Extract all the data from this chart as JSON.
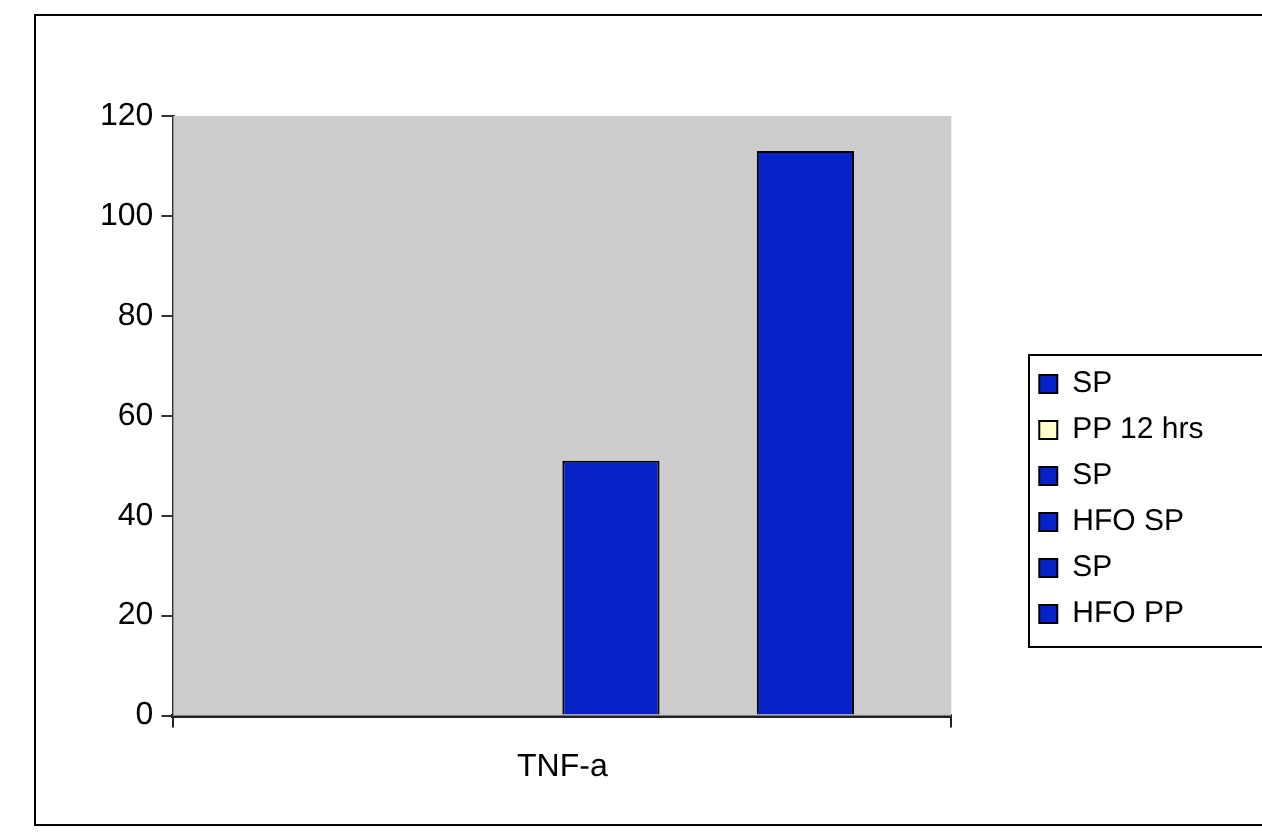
{
  "chart_data": {
    "type": "bar",
    "categories": [
      "TNF-a"
    ],
    "series": [
      {
        "name": "SP",
        "color": "#0722c6",
        "values": [
          0
        ]
      },
      {
        "name": "PP 12 hrs",
        "color": "#ffffcc",
        "values": [
          0
        ]
      },
      {
        "name": "SP",
        "color": "#0722c6",
        "values": [
          0
        ]
      },
      {
        "name": "HFO SP",
        "color": "#0722c6",
        "values": [
          51
        ]
      },
      {
        "name": "SP",
        "color": "#0722c6",
        "values": [
          0
        ]
      },
      {
        "name": "HFO PP",
        "color": "#0722c6",
        "values": [
          113
        ]
      }
    ],
    "ylim": [
      0,
      120
    ],
    "yticks": [
      0,
      20,
      40,
      60,
      80,
      100,
      120
    ],
    "grid": false,
    "legend": "right"
  }
}
